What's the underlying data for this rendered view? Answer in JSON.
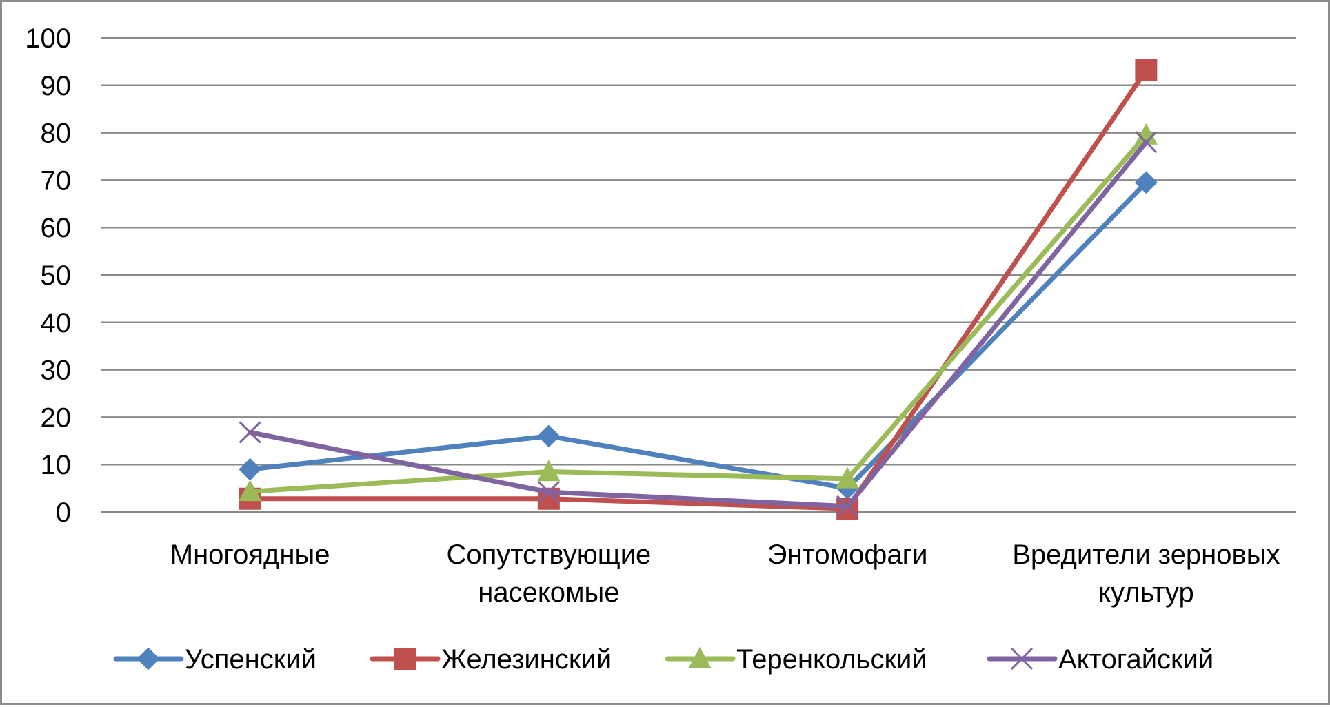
{
  "chart_data": {
    "type": "line",
    "title": "",
    "xlabel": "",
    "ylabel": "",
    "ylim": [
      0,
      100
    ],
    "yticks": [
      0,
      10,
      20,
      30,
      40,
      50,
      60,
      70,
      80,
      90,
      100
    ],
    "grid": true,
    "legend_position": "bottom",
    "categories": [
      [
        "Многоядные"
      ],
      [
        "Сопутствующие",
        "насекомые"
      ],
      [
        "Энтомофаги"
      ],
      [
        "Вредители зерновых",
        "культур"
      ]
    ],
    "series": [
      {
        "name": "Успенский",
        "color": "#4F81BD",
        "marker": "diamond",
        "values": [
          9.0,
          16.0,
          5.0,
          69.5
        ]
      },
      {
        "name": "Железинский",
        "color": "#C0504D",
        "marker": "square",
        "values": [
          2.8,
          2.8,
          0.7,
          93.2
        ]
      },
      {
        "name": "Теренкольский",
        "color": "#9BBB59",
        "marker": "triangle",
        "values": [
          4.3,
          8.5,
          7.0,
          79.5
        ]
      },
      {
        "name": "Актогайский",
        "color": "#8064A2",
        "marker": "x",
        "values": [
          16.8,
          4.2,
          1.2,
          78.0
        ]
      }
    ]
  }
}
